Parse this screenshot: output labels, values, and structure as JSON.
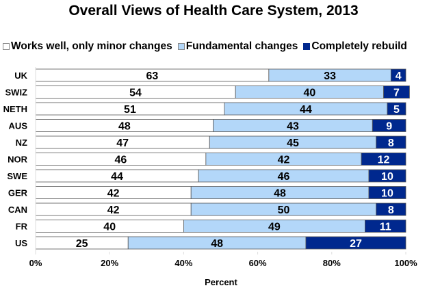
{
  "chart_data": {
    "type": "bar",
    "orientation": "horizontal",
    "stacked": true,
    "title": "Overall Views of Health Care System, 2013",
    "xlabel": "Percent",
    "ylabel": "",
    "xlim": [
      0,
      100
    ],
    "xticks": [
      "0%",
      "20%",
      "40%",
      "60%",
      "80%",
      "100%"
    ],
    "grid": false,
    "legend_position": "top",
    "categories": [
      "UK",
      "SWIZ",
      "NETH",
      "AUS",
      "NZ",
      "NOR",
      "SWE",
      "GER",
      "CAN",
      "FR",
      "US"
    ],
    "series": [
      {
        "name": "Works well, only minor changes",
        "color": "#ffffff",
        "label_color": "#000000",
        "values": [
          63,
          54,
          51,
          48,
          47,
          46,
          44,
          42,
          42,
          40,
          25
        ]
      },
      {
        "name": "Fundamental changes",
        "color": "#b3d7f9",
        "label_color": "#000000",
        "values": [
          33,
          40,
          44,
          43,
          45,
          42,
          46,
          48,
          50,
          49,
          48
        ]
      },
      {
        "name": "Completely rebuild",
        "color": "#00288e",
        "label_color": "#ffffff",
        "values": [
          4,
          7,
          5,
          9,
          8,
          12,
          10,
          10,
          8,
          11,
          27
        ]
      }
    ]
  }
}
